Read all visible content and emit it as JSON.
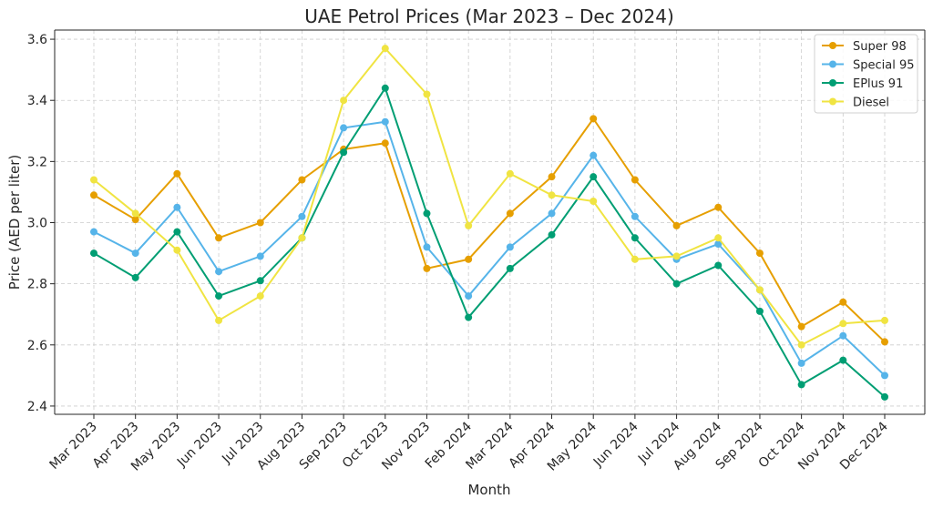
{
  "chart_data": {
    "type": "line",
    "title": "UAE Petrol Prices (Mar 2023 – Dec 2024)",
    "xlabel": "Month",
    "ylabel": "Price (AED per liter)",
    "ylim": [
      2.373,
      3.63
    ],
    "yticks": [
      2.4,
      2.6,
      2.8,
      3.0,
      3.2,
      3.4,
      3.6
    ],
    "grid": true,
    "legend_position": "top-right",
    "categories": [
      "Mar 2023",
      "Apr 2023",
      "May 2023",
      "Jun 2023",
      "Jul 2023",
      "Aug 2023",
      "Sep 2023",
      "Oct 2023",
      "Nov 2023",
      "Feb 2024",
      "Mar 2024",
      "Apr 2024",
      "May 2024",
      "Jun 2024",
      "Jul 2024",
      "Aug 2024",
      "Sep 2024",
      "Oct 2024",
      "Nov 2024",
      "Dec 2024"
    ],
    "series": [
      {
        "name": "Super 98",
        "color": "#E69F00",
        "values": [
          3.09,
          3.01,
          3.16,
          2.95,
          3.0,
          3.14,
          3.24,
          3.26,
          2.85,
          2.88,
          3.03,
          3.15,
          3.34,
          3.14,
          2.99,
          3.05,
          2.9,
          2.66,
          2.74,
          2.61
        ]
      },
      {
        "name": "Special 95",
        "color": "#56B4E9",
        "values": [
          2.97,
          2.9,
          3.05,
          2.84,
          2.89,
          3.02,
          3.31,
          3.33,
          2.92,
          2.76,
          2.92,
          3.03,
          3.22,
          3.02,
          2.88,
          2.93,
          2.78,
          2.54,
          2.63,
          2.5
        ]
      },
      {
        "name": "EPlus 91",
        "color": "#009E73",
        "values": [
          2.9,
          2.82,
          2.97,
          2.76,
          2.81,
          2.95,
          3.23,
          3.44,
          3.03,
          2.69,
          2.85,
          2.96,
          3.15,
          2.95,
          2.8,
          2.86,
          2.71,
          2.47,
          2.55,
          2.43
        ]
      },
      {
        "name": "Diesel",
        "color": "#F0E442",
        "values": [
          3.14,
          3.03,
          2.91,
          2.68,
          2.76,
          2.95,
          3.4,
          3.57,
          3.42,
          2.99,
          3.16,
          3.09,
          3.07,
          2.88,
          2.89,
          2.95,
          2.78,
          2.6,
          2.67,
          2.68
        ]
      }
    ]
  }
}
